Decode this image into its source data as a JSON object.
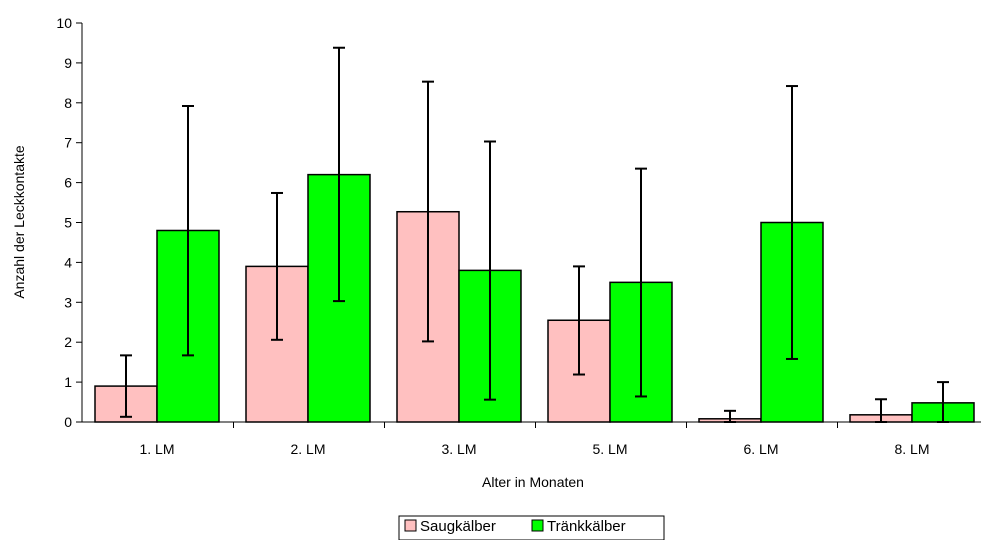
{
  "chart_data": {
    "type": "bar",
    "title": "",
    "xlabel": "Alter in Monaten",
    "ylabel": "Anzahl der Leckkontakte",
    "ylim": [
      0,
      10
    ],
    "yticks": [
      0,
      1,
      2,
      3,
      4,
      5,
      6,
      7,
      8,
      9,
      10
    ],
    "categories": [
      "1. LM",
      "2. LM",
      "3. LM",
      "5. LM",
      "6. LM",
      "8. LM"
    ],
    "series": [
      {
        "name": "Saugkälber",
        "color": "#ffc0c0",
        "values": [
          0.9,
          3.9,
          5.27,
          2.55,
          0.08,
          0.18
        ],
        "error_low": [
          0.13,
          2.06,
          2.02,
          1.19,
          0.0,
          0.0
        ],
        "error_high": [
          1.67,
          5.74,
          8.53,
          3.9,
          0.28,
          0.57
        ]
      },
      {
        "name": "Tränkkälber",
        "color": "#00ff00",
        "values": [
          4.8,
          6.2,
          3.8,
          3.5,
          5.0,
          0.48
        ],
        "error_low": [
          1.67,
          3.03,
          0.56,
          0.64,
          1.58,
          0.0
        ],
        "error_high": [
          7.92,
          9.38,
          7.03,
          6.35,
          8.42,
          1.0
        ]
      }
    ],
    "grid": false,
    "legend": "bottom-center"
  }
}
